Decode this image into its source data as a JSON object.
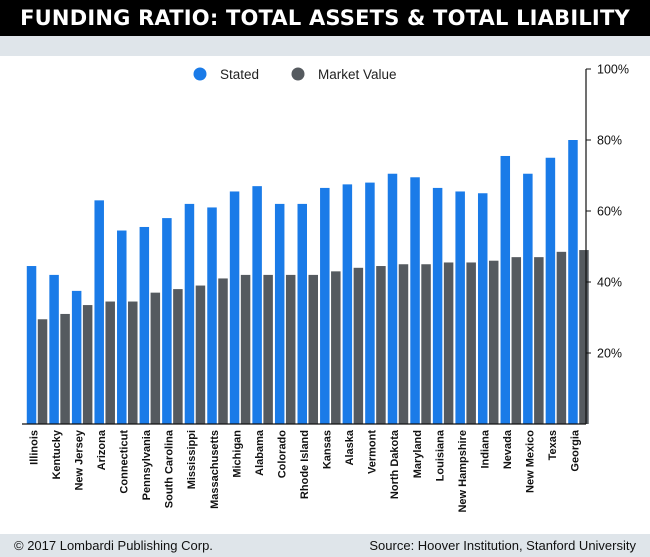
{
  "header": {
    "title": "FUNDING RATIO: TOTAL ASSETS & TOTAL LIABILITY"
  },
  "footer": {
    "copyright": "© 2017 Lombardi Publishing Corp.",
    "source": "Source: Hoover Institution, Stanford University"
  },
  "colors": {
    "stated": "#1a7be8",
    "market_value": "#555a5f",
    "title_bg": "#000000",
    "band_bg": "#dfe5ea"
  },
  "chart_data": {
    "type": "bar",
    "title": "FUNDING RATIO: TOTAL ASSETS & TOTAL LIABILITY",
    "xlabel": "",
    "ylabel": "",
    "categories": [
      "Illinois",
      "Kentucky",
      "New Jersey",
      "Arizona",
      "Connecticut",
      "Pennsylvania",
      "South Carolina",
      "Mississippi",
      "Massachusetts",
      "Michigan",
      "Alabama",
      "Colorado",
      "Rhode Island",
      "Kansas",
      "Alaska",
      "Vermont",
      "North Dakota",
      "Maryland",
      "Louisiana",
      "New Hampshire",
      "Indiana",
      "Nevada",
      "New Mexico",
      "Texas",
      "Georgia"
    ],
    "series": [
      {
        "name": "Stated",
        "values": [
          44.5,
          42.0,
          37.5,
          63.0,
          54.5,
          55.5,
          58.0,
          62.0,
          61.0,
          65.5,
          67.0,
          62.0,
          62.0,
          66.5,
          67.5,
          68.0,
          70.5,
          69.5,
          66.5,
          65.5,
          65.0,
          75.5,
          70.5,
          75.0,
          80.0
        ]
      },
      {
        "name": "Market Value",
        "values": [
          29.5,
          31.0,
          33.5,
          34.5,
          34.5,
          37.0,
          38.0,
          39.0,
          41.0,
          42.0,
          42.0,
          42.0,
          42.0,
          43.0,
          44.0,
          44.5,
          45.0,
          45.0,
          45.5,
          45.5,
          46.0,
          47.0,
          47.0,
          48.5,
          49.0
        ]
      }
    ],
    "ylim": [
      0,
      100
    ],
    "yticks": [
      20,
      40,
      60,
      80,
      100
    ],
    "ytick_labels": [
      "20%",
      "40%",
      "60%",
      "80%",
      "100%"
    ],
    "yaxis_position": "right",
    "grid": false,
    "legend_position": "top-center"
  }
}
